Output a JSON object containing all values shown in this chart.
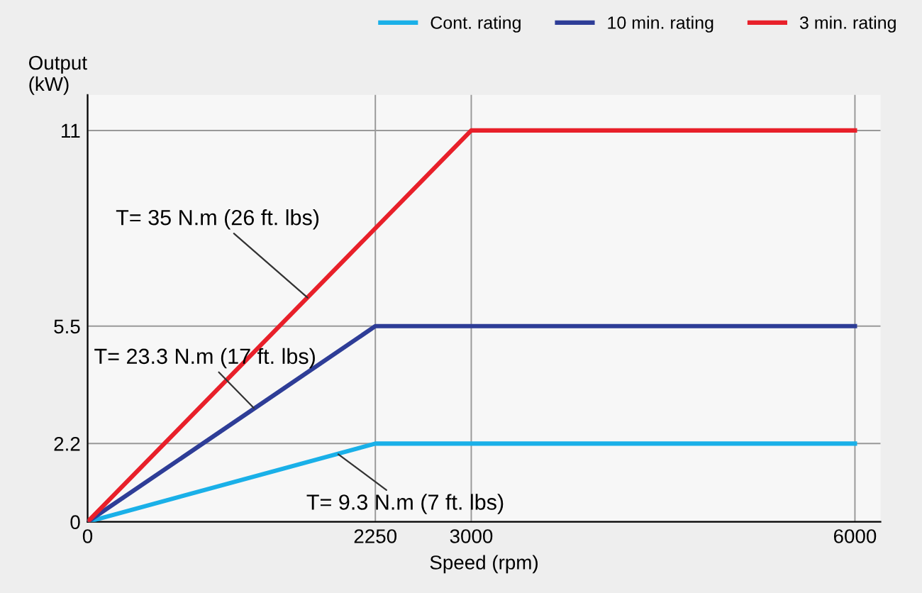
{
  "chart_data": {
    "type": "line",
    "xlabel": "Speed (rpm)",
    "ylabel": "Output\n(kW)",
    "series": [
      {
        "name": "Cont. rating",
        "color": "#1ab0e8",
        "x": [
          0,
          2250,
          6000
        ],
        "values": [
          0,
          2.2,
          2.2
        ]
      },
      {
        "name": "10 min. rating",
        "color": "#2e3d97",
        "x": [
          0,
          2250,
          6000
        ],
        "values": [
          0,
          5.5,
          5.5
        ]
      },
      {
        "name": "3 min. rating",
        "color": "#e8202a",
        "x": [
          0,
          3000,
          6000
        ],
        "values": [
          0,
          11,
          11
        ]
      }
    ],
    "xlim": [
      0,
      6200
    ],
    "ylim": [
      0,
      12
    ],
    "xticks": [
      0,
      2250,
      3000,
      6000
    ],
    "yticks": [
      0,
      2.2,
      5.5,
      11
    ],
    "grid": true,
    "legend": "top right",
    "marker": "none",
    "line_style": "solid",
    "annotations": [
      {
        "text": "T= 35 N.m (26 ft. lbs)",
        "x": 1720,
        "y": 6.3
      },
      {
        "text": "T= 23.3 N.m (17 ft. lbs)",
        "x": 1300,
        "y": 3.2
      },
      {
        "text": "T= 9.3 N.m (7 ft. lbs)",
        "x": 1960,
        "y": 1.9
      }
    ]
  }
}
